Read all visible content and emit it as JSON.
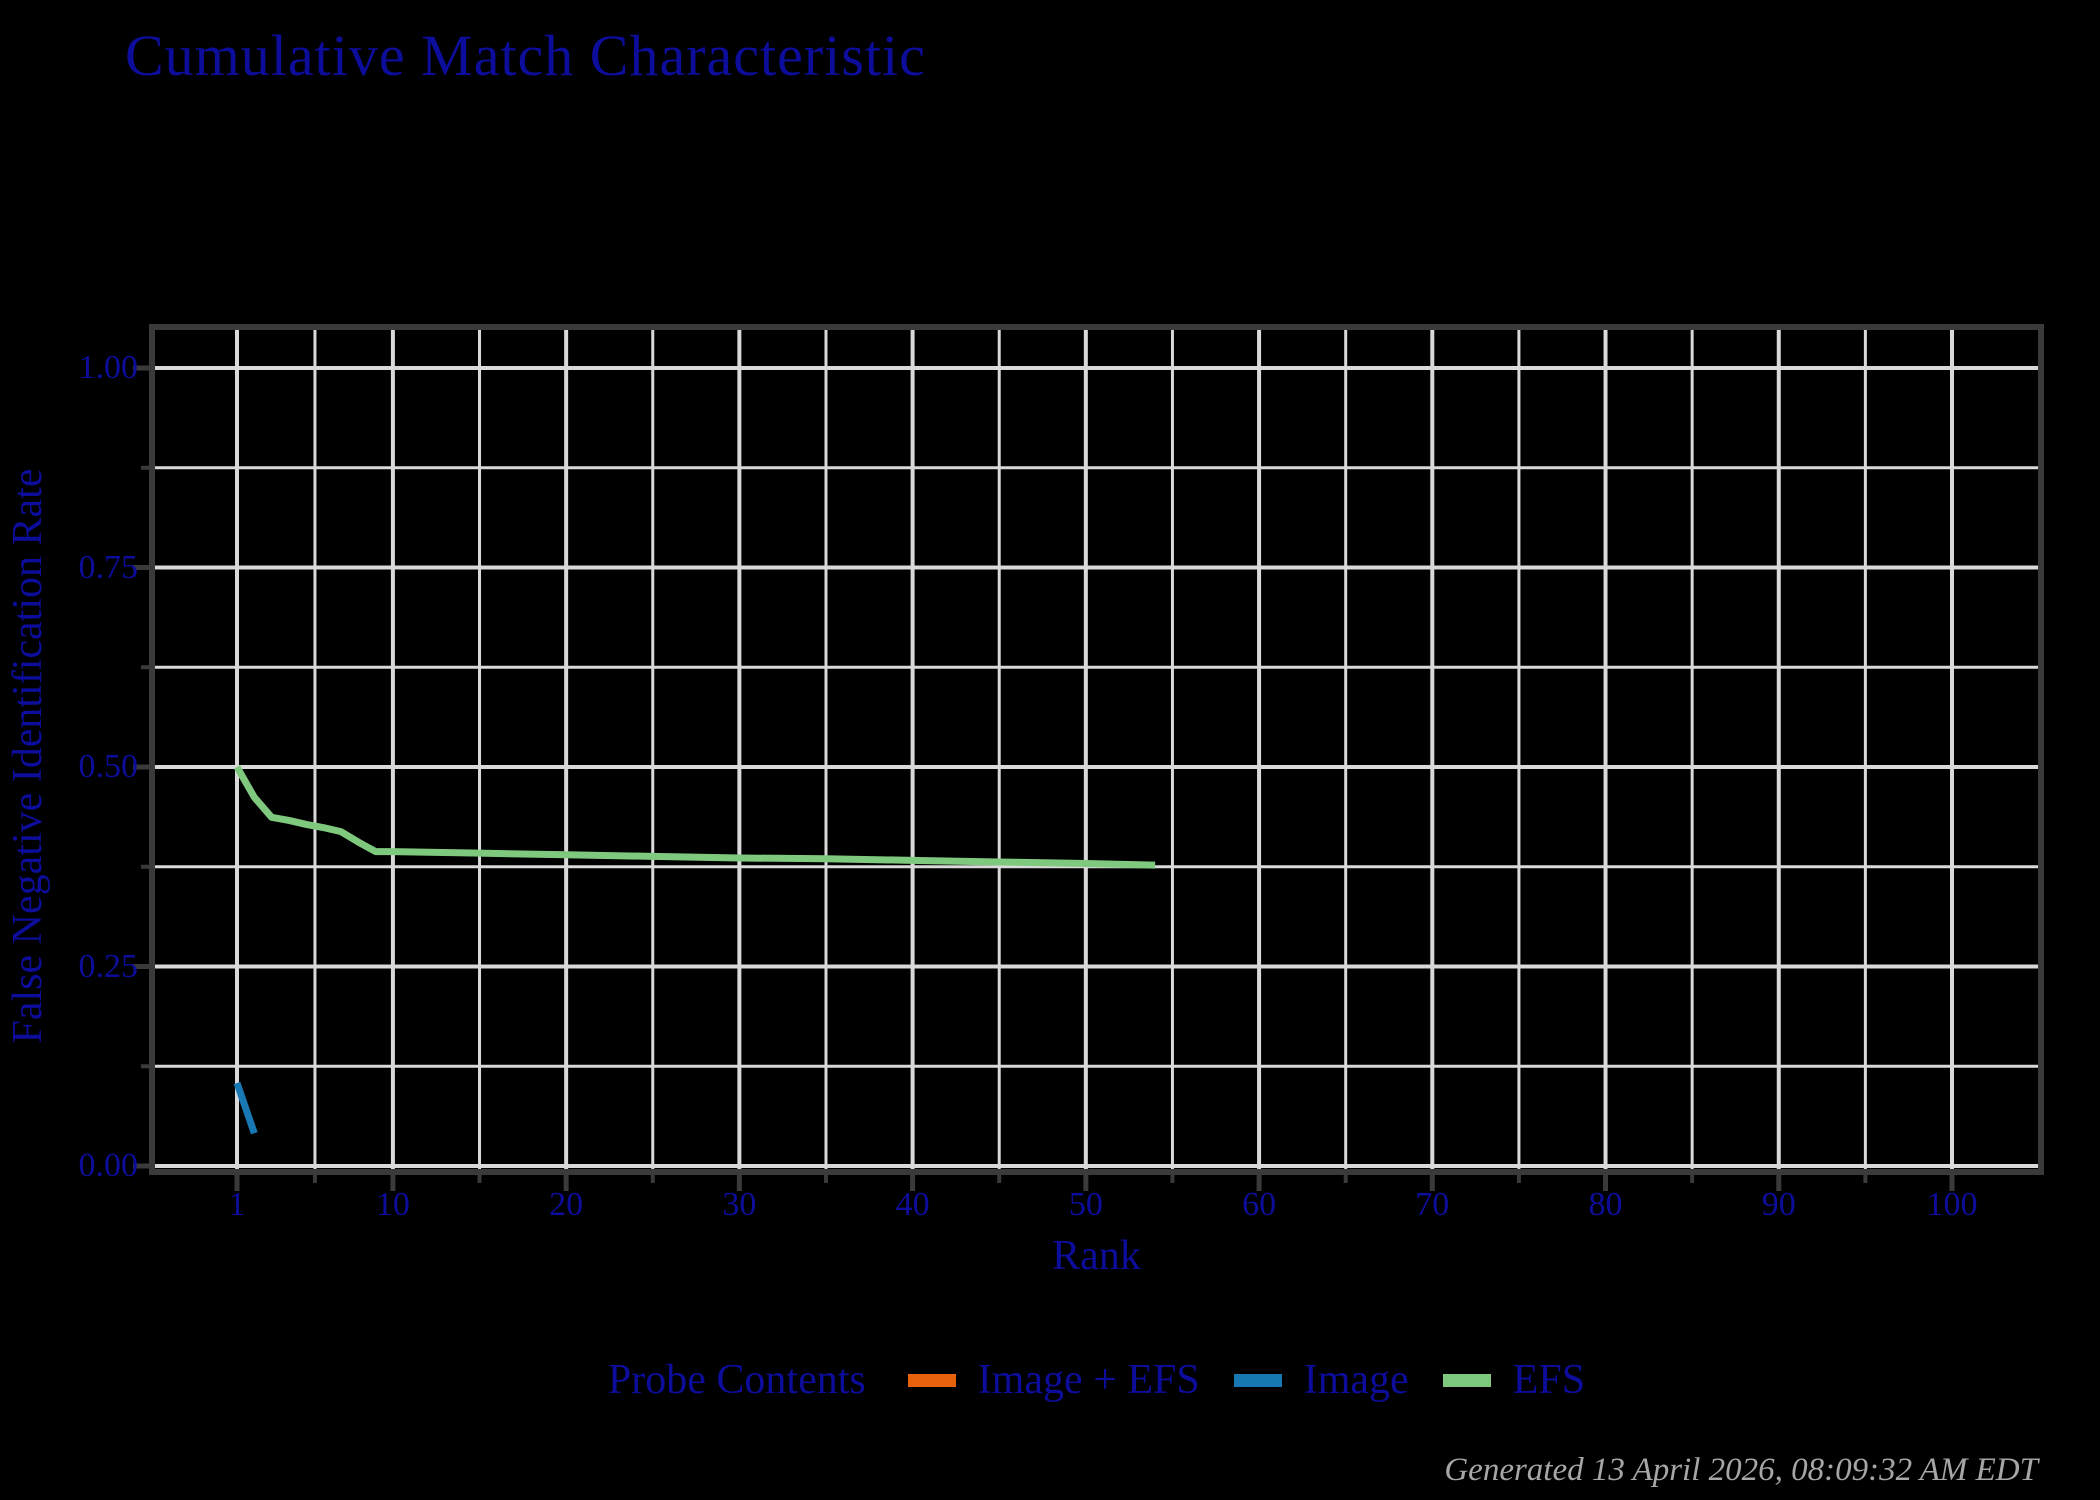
{
  "page": {
    "background_color": "#000000",
    "text_color": "#0d0d9c",
    "grid_color": "#d9d9d9",
    "axis_border_color": "#3a3a3a",
    "timestamp_color": "#a6a6a6"
  },
  "title": {
    "text": "Cumulative Match Characteristic"
  },
  "footer": {
    "generated": "Generated 13 April 2026, 08:09:32 AM EDT"
  },
  "legend": {
    "title": "Probe Contents",
    "position": "bottom",
    "items": [
      {
        "label": "Image + EFS",
        "color": "#e8620d"
      },
      {
        "label": "Image",
        "color": "#1878b4"
      },
      {
        "label": "EFS",
        "color": "#7fc97f"
      }
    ]
  },
  "chart_data": {
    "type": "line",
    "title": "Cumulative Match Characteristic",
    "xlabel": "Rank",
    "ylabel": "False Negative Identification Rate",
    "xlim": [
      -4,
      104
    ],
    "ylim": [
      0,
      1.05
    ],
    "grid": true,
    "legend_position": "bottom",
    "x_ticks": {
      "major_values": [
        1,
        10,
        20,
        30,
        40,
        50,
        60,
        70,
        80,
        90,
        100
      ],
      "major_labels": [
        "1",
        "10",
        "20",
        "30",
        "40",
        "50",
        "60",
        "70",
        "80",
        "90",
        "100"
      ],
      "minor_values": [
        5.5,
        15,
        25,
        35,
        45,
        55,
        65,
        75,
        85,
        95
      ]
    },
    "y_ticks": {
      "major_values": [
        0.0,
        0.25,
        0.5,
        0.75,
        1.0
      ],
      "major_labels": [
        "0.00",
        "0.25",
        "0.50",
        "0.75",
        "1.00"
      ],
      "minor_values": [
        0.125,
        0.375,
        0.625,
        0.875
      ]
    },
    "series": [
      {
        "name": "Image + EFS",
        "color": "#e8620d",
        "points": []
      },
      {
        "name": "Image",
        "color": "#1878b4",
        "points": [
          [
            1,
            0.104
          ],
          [
            2,
            0.041
          ]
        ]
      },
      {
        "name": "EFS",
        "color": "#7fc97f",
        "points": [
          [
            1,
            0.5
          ],
          [
            2,
            0.462
          ],
          [
            3,
            0.437
          ],
          [
            4,
            0.433
          ],
          [
            5,
            0.428
          ],
          [
            6,
            0.424
          ],
          [
            7,
            0.419
          ],
          [
            8,
            0.406
          ],
          [
            9,
            0.394
          ],
          [
            10,
            0.394
          ],
          [
            15,
            0.392
          ],
          [
            20,
            0.39
          ],
          [
            25,
            0.388
          ],
          [
            30,
            0.386
          ],
          [
            35,
            0.385
          ],
          [
            40,
            0.383
          ],
          [
            45,
            0.381
          ],
          [
            50,
            0.379
          ],
          [
            54,
            0.377
          ]
        ]
      }
    ]
  }
}
